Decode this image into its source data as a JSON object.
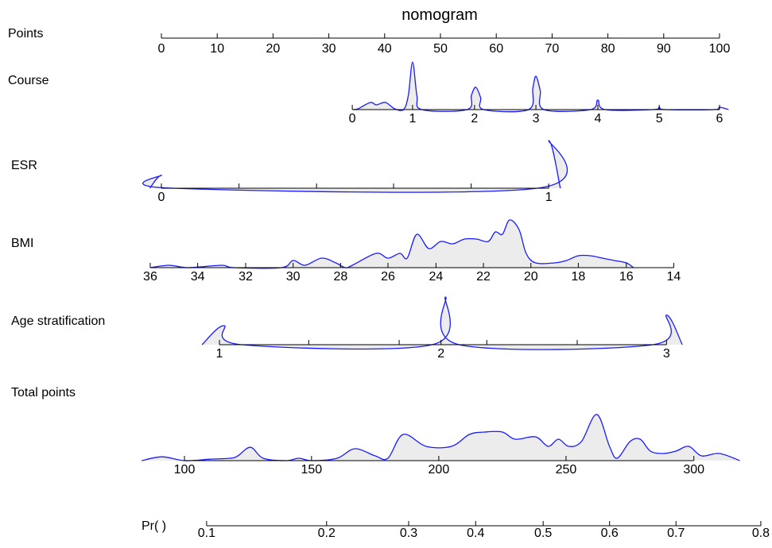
{
  "chart_data": {
    "type": "nomogram",
    "title": "nomogram",
    "curve_color": "#1a1aff",
    "fill_color": "#ececec",
    "points_axis": {
      "label": "Points",
      "ticks": [
        0,
        10,
        20,
        30,
        40,
        50,
        60,
        70,
        80,
        90,
        100
      ]
    },
    "rows": [
      {
        "label": "Course",
        "ticks": [
          {
            "value": 0,
            "points": 34.2
          },
          {
            "value": 1,
            "points": 45.0
          },
          {
            "value": 2,
            "points": 56.1
          },
          {
            "value": 3,
            "points": 67.1
          },
          {
            "value": 4,
            "points": 78.2
          },
          {
            "value": 5,
            "points": 89.2
          },
          {
            "value": 6,
            "points": 100
          }
        ],
        "minor_ticks": [],
        "density_x": [
          -0.07,
          0.1,
          0.3,
          0.4,
          0.55,
          0.7,
          0.85,
          0.93,
          1.0,
          1.07,
          1.15,
          1.88,
          1.95,
          2.02,
          2.1,
          2.15,
          2.88,
          2.95,
          3.0,
          3.07,
          3.13,
          3.88,
          4.0,
          4.12,
          4.9,
          5.0,
          5.1,
          5.9,
          6.0,
          6.15
        ],
        "density_h": [
          0,
          0.02,
          0.15,
          0.1,
          0.15,
          0.02,
          0,
          0.3,
          1.0,
          0.3,
          0,
          0,
          0.3,
          0.47,
          0.25,
          0,
          0,
          0.45,
          0.7,
          0.4,
          0,
          0,
          0.2,
          0,
          0,
          0.05,
          0,
          0,
          0.05,
          0
        ]
      },
      {
        "label": "ESR",
        "ticks": [
          {
            "value": 0,
            "points": 0
          },
          {
            "value": 1,
            "points": 69.4
          }
        ],
        "minor_ticks": [
          {
            "value": 0.2,
            "points": 13.9
          },
          {
            "value": 0.4,
            "points": 27.8
          },
          {
            "value": 0.6,
            "points": 41.6
          },
          {
            "value": 0.8,
            "points": 55.5
          }
        ],
        "density_x": [
          -0.03,
          0,
          0.03,
          0.97,
          1.0,
          1.03
        ],
        "density_h": [
          0,
          0.27,
          0,
          0,
          1.0,
          0
        ]
      },
      {
        "label": "BMI",
        "ticks": [
          {
            "value": 36,
            "points": -2.0
          },
          {
            "value": 34,
            "points": 6.5
          },
          {
            "value": 32,
            "points": 15.1
          },
          {
            "value": 30,
            "points": 23.6
          },
          {
            "value": 28,
            "points": 32.1
          },
          {
            "value": 26,
            "points": 40.6
          },
          {
            "value": 24,
            "points": 49.2
          },
          {
            "value": 22,
            "points": 57.7
          },
          {
            "value": 20,
            "points": 66.2
          },
          {
            "value": 18,
            "points": 74.7
          },
          {
            "value": 16,
            "points": 83.3
          },
          {
            "value": 14,
            "points": 91.8
          }
        ],
        "minor_ticks": [],
        "density_x": [
          36,
          35.2,
          34.4,
          33,
          32.5,
          30.5,
          30,
          29.5,
          28.8,
          28.2,
          27.8,
          27.5,
          26.5,
          26,
          25.5,
          25.2,
          24.8,
          24.3,
          23.8,
          23.3,
          22.8,
          22.3,
          21.8,
          21.5,
          21.2,
          20.9,
          20.5,
          20.2,
          19.8,
          19,
          18.5,
          18,
          17.5,
          17,
          16.5,
          16,
          15.7
        ],
        "density_h": [
          0,
          0.05,
          0,
          0.05,
          0,
          0,
          0.15,
          0.05,
          0.2,
          0.1,
          0,
          0.05,
          0.3,
          0.2,
          0.3,
          0.2,
          0.7,
          0.4,
          0.55,
          0.5,
          0.6,
          0.6,
          0.55,
          0.75,
          0.7,
          1.0,
          0.8,
          0.3,
          0.1,
          0.1,
          0.15,
          0.25,
          0.25,
          0.2,
          0.15,
          0.1,
          0
        ]
      },
      {
        "label": "Age stratification",
        "ticks": [
          {
            "value": 1,
            "points": 10.4
          },
          {
            "value": 2,
            "points": 50.1
          },
          {
            "value": 3,
            "points": 90.5
          }
        ],
        "minor_ticks": [
          {
            "value": 1.4,
            "points": 26.4
          },
          {
            "value": 1.8,
            "points": 42.6
          },
          {
            "value": 2.2,
            "points": 58.3
          },
          {
            "value": 2.6,
            "points": 74.5
          }
        ],
        "density_x": [
          0.94,
          1.02,
          1.1,
          1.96,
          2.02,
          2.08,
          2.94,
          3.0,
          3.07
        ],
        "density_h": [
          0,
          0.4,
          0,
          0,
          1.0,
          0,
          0,
          0.62,
          0
        ]
      },
      {
        "label": "Total points",
        "ticks": [
          {
            "value": 100,
            "points": 4.13
          },
          {
            "value": 150,
            "points": 26.9
          },
          {
            "value": 200,
            "points": 49.7
          },
          {
            "value": 250,
            "points": 72.5
          },
          {
            "value": 300,
            "points": 95.4
          }
        ],
        "minor_ticks": [],
        "density_x": [
          84,
          92,
          100,
          110,
          118,
          121,
          126,
          131,
          140,
          145,
          150,
          160,
          167,
          175,
          180,
          186,
          195,
          205,
          212,
          218,
          225,
          230,
          238,
          243,
          247,
          251,
          256,
          262,
          267,
          270,
          275,
          279,
          283,
          288,
          293,
          298,
          303,
          310,
          318
        ],
        "density_h": [
          0,
          0.08,
          0,
          0.03,
          0.05,
          0.1,
          0.28,
          0.05,
          0,
          0.05,
          0,
          0.05,
          0.25,
          0.1,
          0.05,
          0.55,
          0.3,
          0.3,
          0.55,
          0.6,
          0.6,
          0.45,
          0.5,
          0.3,
          0.45,
          0.3,
          0.4,
          0.97,
          0.3,
          0.05,
          0.4,
          0.45,
          0.2,
          0.15,
          0.2,
          0.3,
          0.1,
          0.15,
          0
        ]
      }
    ],
    "probability": {
      "label": "Pr( )",
      "ticks": [
        {
          "value": 0.1,
          "points": 8.1
        },
        {
          "value": 0.2,
          "points": 29.6
        },
        {
          "value": 0.3,
          "points": 44.3
        },
        {
          "value": 0.4,
          "points": 56.3
        },
        {
          "value": 0.5,
          "points": 68.4
        },
        {
          "value": 0.6,
          "points": 80.3
        },
        {
          "value": 0.7,
          "points": 92.2
        },
        {
          "value": 0.8,
          "points": 107.4
        }
      ]
    }
  }
}
